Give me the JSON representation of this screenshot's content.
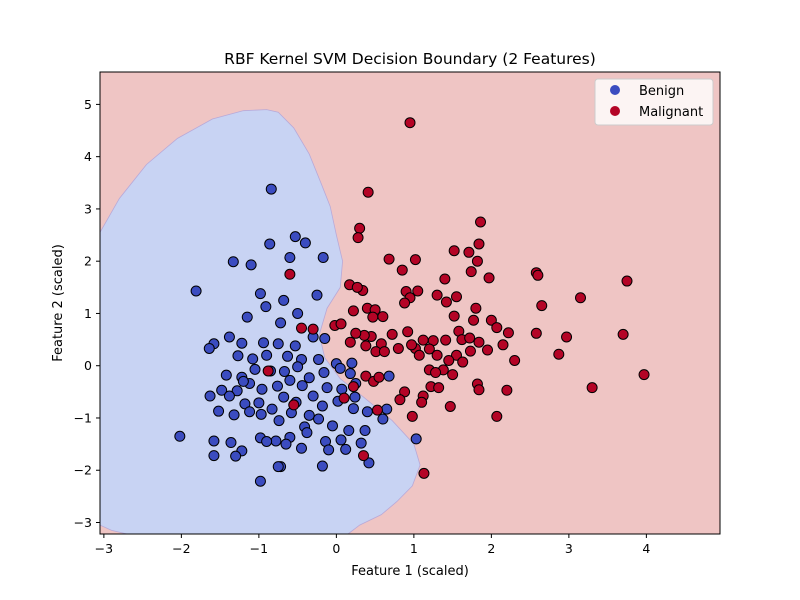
{
  "chart_data": {
    "type": "scatter",
    "title": "RBF Kernel SVM Decision Boundary (2 Features)",
    "xlabel": "Feature 1 (scaled)",
    "ylabel": "Feature 2 (scaled)",
    "xlim": [
      -3.05,
      4.95
    ],
    "ylim": [
      -3.22,
      5.62
    ],
    "xticks": [
      -3,
      -2,
      -1,
      0,
      1,
      2,
      3,
      4
    ],
    "yticks": [
      -3,
      -2,
      -1,
      0,
      1,
      2,
      3,
      4,
      5
    ],
    "grid": false,
    "legend_position": "top-right",
    "regions": [
      {
        "class": "Benign",
        "color": "#c8d3f3",
        "boundary": [
          [
            -3.05,
            2.55
          ],
          [
            -2.8,
            3.2
          ],
          [
            -2.45,
            3.85
          ],
          [
            -2.05,
            4.35
          ],
          [
            -1.6,
            4.72
          ],
          [
            -1.2,
            4.88
          ],
          [
            -0.9,
            4.9
          ],
          [
            -0.75,
            4.85
          ],
          [
            -0.55,
            4.55
          ],
          [
            -0.35,
            4.05
          ],
          [
            -0.2,
            3.5
          ],
          [
            -0.08,
            3.05
          ],
          [
            0.0,
            2.5
          ],
          [
            0.08,
            2.0
          ],
          [
            0.05,
            1.5
          ],
          [
            -0.12,
            1.1
          ],
          [
            -0.22,
            0.6
          ],
          [
            -0.15,
            0.15
          ],
          [
            0.05,
            -0.25
          ],
          [
            0.35,
            -0.6
          ],
          [
            0.72,
            -1.05
          ],
          [
            1.0,
            -1.5
          ],
          [
            1.08,
            -1.9
          ],
          [
            0.98,
            -2.3
          ],
          [
            0.78,
            -2.6
          ],
          [
            0.58,
            -2.85
          ],
          [
            0.3,
            -3.05
          ],
          [
            0.15,
            -3.22
          ],
          [
            -2.7,
            -3.22
          ],
          [
            -2.9,
            -3.15
          ],
          [
            -3.05,
            -3.05
          ]
        ]
      },
      {
        "class": "Malignant",
        "color": "#efc5c4"
      }
    ],
    "series": [
      {
        "name": "Benign",
        "color": "#3b4cc0",
        "points": [
          [
            -1.81,
            1.43
          ],
          [
            -0.84,
            3.38
          ],
          [
            -0.53,
            2.47
          ],
          [
            -0.86,
            2.33
          ],
          [
            -0.4,
            2.35
          ],
          [
            -0.6,
            2.07
          ],
          [
            -0.17,
            2.07
          ],
          [
            -1.33,
            1.99
          ],
          [
            -1.1,
            1.93
          ],
          [
            -0.98,
            1.38
          ],
          [
            -0.25,
            1.35
          ],
          [
            -0.68,
            1.25
          ],
          [
            -0.72,
            0.82
          ],
          [
            -0.91,
            1.13
          ],
          [
            -0.5,
            1.0
          ],
          [
            -1.15,
            0.93
          ],
          [
            -1.38,
            0.55
          ],
          [
            -1.58,
            0.42
          ],
          [
            -1.64,
            0.33
          ],
          [
            -1.22,
            0.43
          ],
          [
            -0.94,
            0.44
          ],
          [
            -0.75,
            0.42
          ],
          [
            -0.53,
            0.38
          ],
          [
            -1.27,
            0.19
          ],
          [
            -1.08,
            0.13
          ],
          [
            -0.9,
            0.2
          ],
          [
            -0.63,
            0.18
          ],
          [
            -0.45,
            0.12
          ],
          [
            -0.3,
            0.55
          ],
          [
            -0.15,
            0.52
          ],
          [
            -0.23,
            0.12
          ],
          [
            0.0,
            0.04
          ],
          [
            0.2,
            0.05
          ],
          [
            -1.42,
            -0.18
          ],
          [
            -1.22,
            -0.22
          ],
          [
            -1.05,
            -0.07
          ],
          [
            -0.85,
            -0.1
          ],
          [
            -0.67,
            -0.11
          ],
          [
            -0.5,
            -0.02
          ],
          [
            -0.35,
            -0.23
          ],
          [
            -0.16,
            -0.13
          ],
          [
            0.05,
            -0.05
          ],
          [
            -1.48,
            -0.47
          ],
          [
            -1.28,
            -0.48
          ],
          [
            -1.12,
            -0.34
          ],
          [
            -0.96,
            -0.45
          ],
          [
            -0.76,
            -0.39
          ],
          [
            -0.6,
            -0.28
          ],
          [
            -0.44,
            -0.38
          ],
          [
            -0.3,
            -0.58
          ],
          [
            -0.12,
            -0.42
          ],
          [
            0.07,
            -0.45
          ],
          [
            0.25,
            -0.34
          ],
          [
            -1.63,
            -0.58
          ],
          [
            -1.38,
            -0.58
          ],
          [
            -1.18,
            -0.73
          ],
          [
            -1.0,
            -0.71
          ],
          [
            -0.83,
            -0.83
          ],
          [
            -0.68,
            -0.6
          ],
          [
            -0.52,
            -0.7
          ],
          [
            -0.35,
            -0.95
          ],
          [
            -0.18,
            -0.77
          ],
          [
            0.02,
            -0.68
          ],
          [
            0.22,
            -0.82
          ],
          [
            0.4,
            -0.88
          ],
          [
            -1.52,
            -0.87
          ],
          [
            -1.32,
            -0.94
          ],
          [
            -1.12,
            -0.88
          ],
          [
            -0.97,
            -0.93
          ],
          [
            -0.74,
            -1.05
          ],
          [
            -0.58,
            -0.9
          ],
          [
            -0.41,
            -1.17
          ],
          [
            -0.23,
            -1.02
          ],
          [
            -0.05,
            -1.15
          ],
          [
            0.16,
            -1.24
          ],
          [
            0.37,
            -1.24
          ],
          [
            -2.02,
            -1.35
          ],
          [
            -1.58,
            -1.44
          ],
          [
            -1.36,
            -1.47
          ],
          [
            -1.22,
            -1.63
          ],
          [
            -0.98,
            -1.38
          ],
          [
            -0.78,
            -1.44
          ],
          [
            -0.6,
            -1.37
          ],
          [
            -0.38,
            -1.28
          ],
          [
            -0.14,
            -1.45
          ],
          [
            0.06,
            -1.42
          ],
          [
            0.32,
            -1.48
          ],
          [
            -1.58,
            -1.72
          ],
          [
            -1.3,
            -1.73
          ],
          [
            -0.9,
            -1.45
          ],
          [
            -0.65,
            -1.5
          ],
          [
            -0.45,
            -1.58
          ],
          [
            -0.1,
            -1.61
          ],
          [
            0.12,
            -1.6
          ],
          [
            0.42,
            -1.86
          ],
          [
            -0.72,
            -1.93
          ],
          [
            -0.18,
            -1.92
          ],
          [
            -0.98,
            -2.21
          ],
          [
            1.03,
            -1.4
          ],
          [
            0.6,
            -1.02
          ],
          [
            0.65,
            -0.83
          ],
          [
            0.68,
            -0.2
          ],
          [
            0.18,
            -0.15
          ],
          [
            0.24,
            -0.6
          ],
          [
            -1.2,
            -0.3
          ],
          [
            -0.75,
            -1.93
          ]
        ]
      },
      {
        "class_note": "",
        "name": "Malignant",
        "color": "#b40426",
        "points": [
          [
            0.95,
            4.65
          ],
          [
            0.41,
            3.32
          ],
          [
            0.3,
            2.63
          ],
          [
            0.28,
            2.45
          ],
          [
            1.02,
            2.03
          ],
          [
            1.86,
            2.75
          ],
          [
            1.84,
            2.33
          ],
          [
            1.52,
            2.2
          ],
          [
            1.71,
            2.17
          ],
          [
            1.82,
            2.0
          ],
          [
            1.97,
            1.68
          ],
          [
            0.68,
            2.04
          ],
          [
            0.85,
            1.83
          ],
          [
            2.58,
            1.78
          ],
          [
            2.6,
            1.73
          ],
          [
            0.17,
            1.55
          ],
          [
            0.34,
            1.44
          ],
          [
            0.27,
            1.5
          ],
          [
            1.4,
            1.66
          ],
          [
            1.74,
            1.8
          ],
          [
            3.15,
            1.3
          ],
          [
            3.75,
            1.62
          ],
          [
            1.3,
            1.35
          ],
          [
            1.42,
            1.22
          ],
          [
            0.9,
            1.42
          ],
          [
            0.95,
            1.3
          ],
          [
            1.05,
            1.43
          ],
          [
            0.88,
            1.2
          ],
          [
            2.65,
            1.15
          ],
          [
            0.4,
            1.1
          ],
          [
            0.5,
            1.07
          ],
          [
            0.47,
            0.93
          ],
          [
            0.6,
            0.94
          ],
          [
            1.55,
            1.32
          ],
          [
            1.8,
            1.1
          ],
          [
            1.52,
            0.95
          ],
          [
            1.77,
            0.87
          ],
          [
            2.0,
            0.87
          ],
          [
            2.07,
            0.73
          ],
          [
            2.22,
            0.63
          ],
          [
            1.58,
            0.66
          ],
          [
            1.62,
            0.5
          ],
          [
            1.41,
            0.49
          ],
          [
            1.25,
            0.48
          ],
          [
            1.12,
            0.49
          ],
          [
            1.02,
            0.33
          ],
          [
            1.07,
            0.2
          ],
          [
            1.2,
            0.32
          ],
          [
            1.3,
            0.2
          ],
          [
            0.92,
            0.65
          ],
          [
            0.72,
            0.6
          ],
          [
            0.58,
            0.42
          ],
          [
            0.45,
            0.56
          ],
          [
            0.36,
            0.58
          ],
          [
            0.25,
            0.62
          ],
          [
            0.18,
            0.45
          ],
          [
            0.38,
            0.38
          ],
          [
            0.51,
            0.27
          ],
          [
            0.62,
            0.27
          ],
          [
            0.8,
            0.33
          ],
          [
            0.97,
            0.4
          ],
          [
            1.72,
            0.53
          ],
          [
            1.84,
            0.45
          ],
          [
            1.95,
            0.3
          ],
          [
            2.15,
            0.4
          ],
          [
            2.3,
            0.1
          ],
          [
            2.58,
            0.62
          ],
          [
            2.97,
            0.55
          ],
          [
            2.87,
            0.22
          ],
          [
            3.7,
            0.6
          ],
          [
            3.3,
            -0.42
          ],
          [
            3.97,
            -0.17
          ],
          [
            1.73,
            0.28
          ],
          [
            1.55,
            0.2
          ],
          [
            1.45,
            0.1
          ],
          [
            1.63,
            0.07
          ],
          [
            1.38,
            -0.08
          ],
          [
            1.2,
            -0.08
          ],
          [
            1.28,
            -0.13
          ],
          [
            1.5,
            -0.17
          ],
          [
            1.22,
            -0.4
          ],
          [
            1.32,
            -0.42
          ],
          [
            1.12,
            -0.58
          ],
          [
            0.88,
            -0.5
          ],
          [
            0.82,
            -0.65
          ],
          [
            0.98,
            -0.97
          ],
          [
            1.47,
            -0.78
          ],
          [
            1.82,
            -0.35
          ],
          [
            1.84,
            -0.46
          ],
          [
            2.2,
            -0.47
          ],
          [
            2.07,
            -0.97
          ],
          [
            0.38,
            -0.2
          ],
          [
            0.48,
            -0.3
          ],
          [
            0.55,
            -0.22
          ],
          [
            0.22,
            -0.4
          ],
          [
            0.1,
            -0.62
          ],
          [
            0.53,
            -0.85
          ],
          [
            1.1,
            -0.7
          ],
          [
            1.13,
            -2.06
          ],
          [
            0.35,
            -1.72
          ],
          [
            -0.6,
            1.75
          ],
          [
            -0.45,
            0.72
          ],
          [
            -0.3,
            0.7
          ],
          [
            -0.02,
            0.77
          ],
          [
            0.06,
            0.8
          ],
          [
            0.22,
            1.05
          ],
          [
            -0.88,
            -0.1
          ],
          [
            -0.55,
            -0.75
          ]
        ]
      }
    ]
  }
}
